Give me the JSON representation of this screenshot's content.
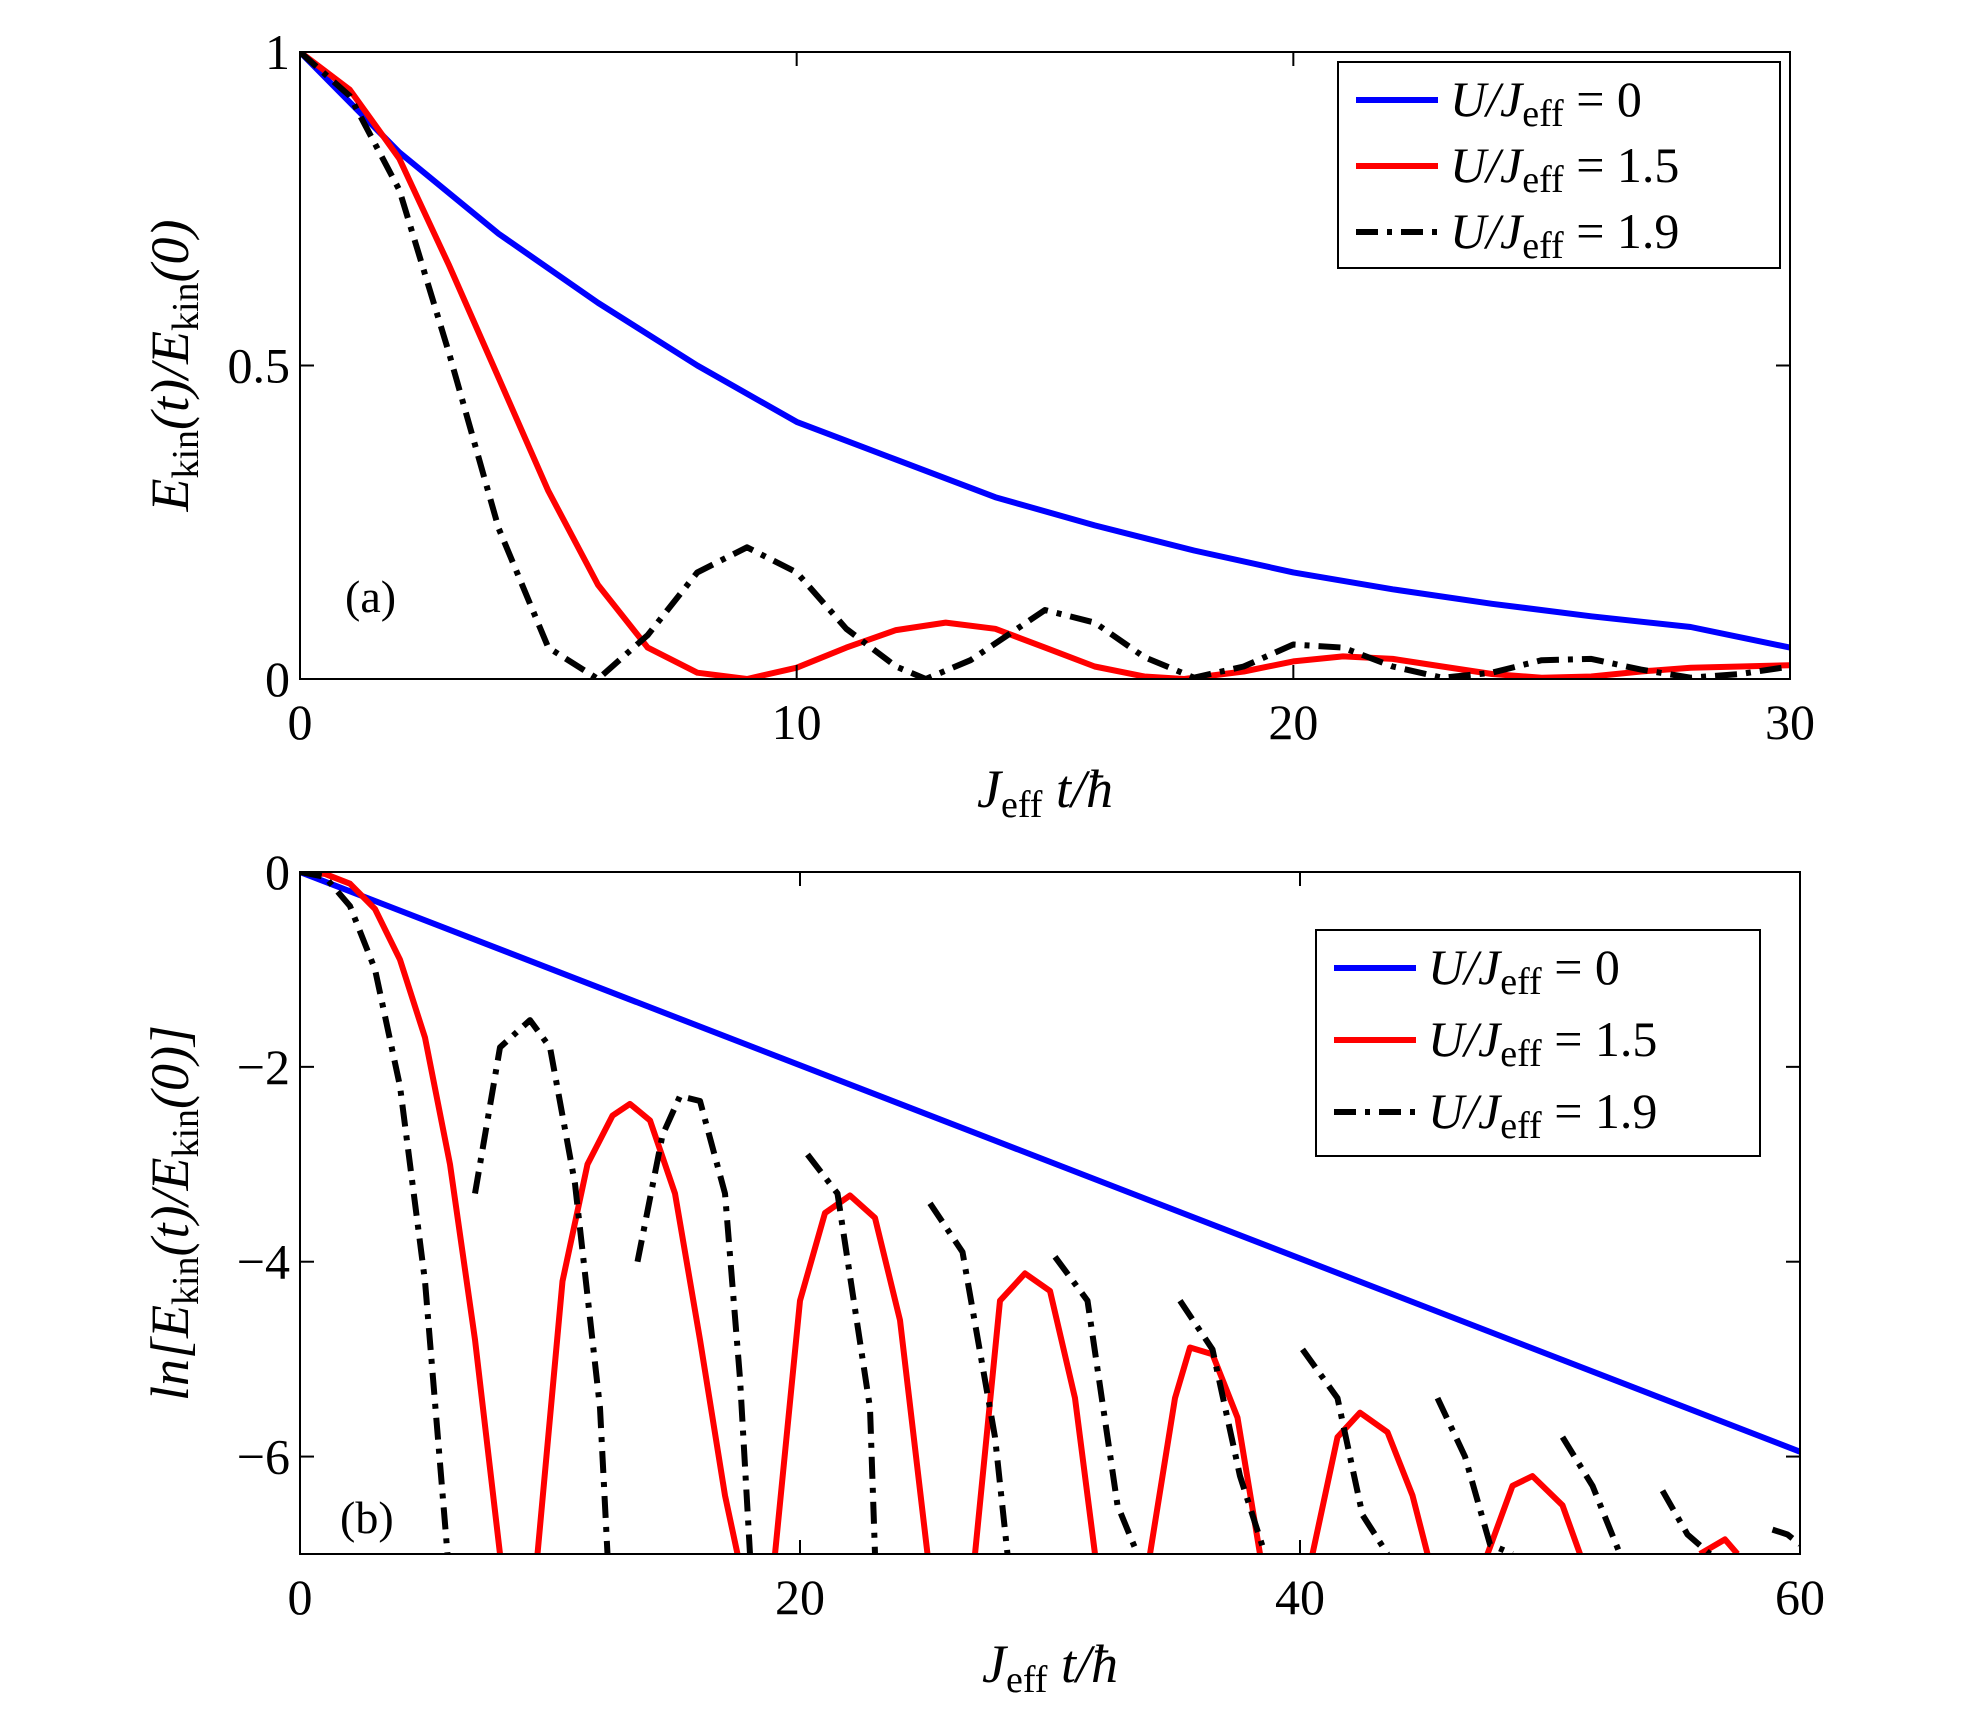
{
  "chart_data": [
    {
      "type": "line",
      "panel_label": "(a)",
      "xlabel": {
        "main": "J",
        "sub": "eff",
        "rest": " t/ħ"
      },
      "ylabel": {
        "pre": "E",
        "sub1": "kin",
        "mid": "(t)/E",
        "sub2": "kin",
        "post": "(0)"
      },
      "xlim": [
        0,
        30
      ],
      "ylim": [
        0,
        1
      ],
      "xticks": [
        0,
        10,
        20,
        30
      ],
      "xtick_labels": [
        "0",
        "10",
        "20",
        "30"
      ],
      "yticks": [
        0,
        0.5,
        1
      ],
      "ytick_labels": [
        "0",
        "0.5",
        "1"
      ],
      "legend_position": "top-right",
      "series": [
        {
          "name": "U/Jeff = 0",
          "legend": {
            "lhs": "U/J",
            "sub": "eff",
            "rhs": " = 0"
          },
          "color": "#0000ff",
          "style": "solid",
          "x": [
            0,
            2,
            4,
            6,
            8,
            10,
            12,
            14,
            16,
            18,
            20,
            22,
            24,
            26,
            28,
            30
          ],
          "y": [
            1.0,
            0.84,
            0.71,
            0.6,
            0.5,
            0.41,
            0.35,
            0.29,
            0.245,
            0.205,
            0.17,
            0.143,
            0.12,
            0.1,
            0.083,
            0.05
          ]
        },
        {
          "name": "U/Jeff = 1.5",
          "legend": {
            "lhs": "U/J",
            "sub": "eff",
            "rhs": " = 1.5"
          },
          "color": "#ff0000",
          "style": "solid",
          "x": [
            0,
            1,
            2,
            3,
            4,
            5,
            6,
            7,
            8,
            9,
            10,
            11,
            12,
            13,
            14,
            15,
            16,
            17,
            17.8,
            19,
            20,
            21,
            22,
            23,
            24,
            25,
            26,
            27,
            28,
            29,
            30
          ],
          "y": [
            1.0,
            0.94,
            0.83,
            0.66,
            0.48,
            0.3,
            0.15,
            0.05,
            0.01,
            0.0,
            0.018,
            0.05,
            0.078,
            0.09,
            0.08,
            0.05,
            0.02,
            0.004,
            0.0,
            0.012,
            0.028,
            0.036,
            0.032,
            0.02,
            0.008,
            0.002,
            0.004,
            0.012,
            0.018,
            0.02,
            0.022
          ]
        },
        {
          "name": "U/Jeff = 1.9",
          "legend": {
            "lhs": "U/J",
            "sub": "eff",
            "rhs": " = 1.9"
          },
          "color": "#000000",
          "style": "dashdot",
          "x": [
            0,
            1,
            2,
            3,
            4,
            5,
            6,
            7,
            8,
            9,
            10,
            11,
            12,
            12.6,
            13.5,
            15,
            16,
            17,
            18,
            19,
            20,
            21,
            22,
            23,
            24,
            25,
            26,
            27,
            28,
            29,
            30
          ],
          "y": [
            1.0,
            0.93,
            0.78,
            0.52,
            0.24,
            0.05,
            0.0,
            0.07,
            0.17,
            0.21,
            0.17,
            0.08,
            0.02,
            0.0,
            0.03,
            0.11,
            0.09,
            0.035,
            0.002,
            0.02,
            0.055,
            0.05,
            0.02,
            0.002,
            0.01,
            0.03,
            0.032,
            0.015,
            0.002,
            0.008,
            0.02
          ]
        }
      ]
    },
    {
      "type": "line",
      "panel_label": "(b)",
      "xlabel": {
        "main": "J",
        "sub": "eff",
        "rest": " t/ħ"
      },
      "ylabel": {
        "pre": "ln[E",
        "sub1": "kin",
        "mid": "(t)/E",
        "sub2": "kin",
        "post": "(0)]"
      },
      "xlim": [
        0,
        60
      ],
      "ylim": [
        -7,
        0
      ],
      "xticks": [
        0,
        20,
        40,
        60
      ],
      "xtick_labels": [
        "0",
        "20",
        "40",
        "60"
      ],
      "yticks": [
        0,
        -2,
        -4,
        -6
      ],
      "ytick_labels": [
        "0",
        "−2",
        "−4",
        "−6"
      ],
      "legend_position": "upper-right",
      "series": [
        {
          "name": "U/Jeff = 0",
          "legend": {
            "lhs": "U/J",
            "sub": "eff",
            "rhs": " = 0"
          },
          "color": "#0000ff",
          "style": "solid",
          "x": [
            0,
            60
          ],
          "y": [
            0,
            -5.95
          ]
        },
        {
          "name": "U/Jeff = 1.5",
          "legend": {
            "lhs": "U/J",
            "sub": "eff",
            "rhs": " = 1.5"
          },
          "color": "#ff0000",
          "style": "solid",
          "x": [
            0,
            1,
            2,
            3,
            4,
            5,
            6,
            7,
            8,
            8.5,
            9.5,
            10.5,
            11.5,
            12.5,
            13.2,
            14,
            15,
            16,
            17,
            17.5,
            18.1,
            19,
            20,
            21,
            22,
            23,
            24,
            25.1,
            26,
            27,
            28,
            29,
            30,
            31,
            31.8,
            33.2,
            34,
            35,
            35.6,
            36.5,
            37.5,
            38.4,
            39.8,
            40.5,
            41.5,
            42.4,
            43.5,
            44.5,
            45.1,
            46.5,
            47.5,
            48.5,
            49.3,
            50.5,
            51.2,
            55,
            56,
            57,
            57.5
          ],
          "y": [
            0,
            -0.02,
            -0.12,
            -0.38,
            -0.9,
            -1.7,
            -3.0,
            -4.8,
            -7.0,
            null,
            -7.0,
            -4.2,
            -3.0,
            -2.5,
            -2.38,
            -2.55,
            -3.3,
            -4.8,
            -6.4,
            -7.0,
            null,
            -7.0,
            -4.4,
            -3.5,
            -3.32,
            -3.55,
            -4.6,
            -7.0,
            null,
            -7.0,
            -4.4,
            -4.12,
            -4.3,
            -5.4,
            -7.0,
            null,
            -7.0,
            -5.4,
            -4.88,
            -4.95,
            -5.6,
            -7.0,
            null,
            -7.0,
            -5.8,
            -5.55,
            -5.75,
            -6.4,
            -7.0,
            null,
            -7.0,
            -6.3,
            -6.2,
            -6.5,
            -7.0,
            null,
            -7.0,
            -6.85,
            -7.0
          ]
        },
        {
          "name": "U/Jeff = 1.9",
          "legend": {
            "lhs": "U/J",
            "sub": "eff",
            "rhs": " = 1.9"
          },
          "color": "#000000",
          "style": "dashdot",
          "x": [
            0,
            1,
            2,
            3,
            4,
            5,
            5.9,
            6.2,
            7,
            8,
            9.2,
            10,
            11,
            12,
            12.3,
            12.6,
            13.5,
            14.5,
            15.2,
            16,
            17,
            17.6,
            18,
            19,
            20.3,
            21.5,
            22.8,
            23,
            24,
            25.2,
            26.5,
            27.8,
            28.3,
            29,
            30.2,
            31.5,
            32.7,
            33.5,
            34.5,
            35.2,
            36.5,
            37.6,
            38.6,
            39.5,
            40.1,
            41.5,
            42.5,
            43.5,
            44.6,
            45.5,
            46.6,
            47.6,
            48.5,
            49.6,
            50.5,
            51.7,
            52.8,
            53.5,
            54.5,
            55.5,
            56.4,
            58.2,
            58.9,
            59.5,
            60
          ],
          "y": [
            0,
            -0.05,
            -0.35,
            -1.0,
            -2.2,
            -4.2,
            -7.0,
            null,
            -3.3,
            -1.8,
            -1.52,
            -1.8,
            -3.2,
            -5.5,
            -7.0,
            null,
            -4.0,
            -2.7,
            -2.3,
            -2.35,
            -3.3,
            -5.2,
            -7.0,
            null,
            -2.9,
            -3.3,
            -5.5,
            -7.0,
            null,
            -3.4,
            -3.9,
            -5.8,
            -7.0,
            null,
            -3.95,
            -4.4,
            -6.5,
            -7.0,
            null,
            -4.4,
            -4.9,
            -6.2,
            -7.0,
            null,
            -4.9,
            -5.4,
            -6.6,
            -7.0,
            null,
            -5.4,
            -6.0,
            -6.9,
            -7.0,
            null,
            -5.8,
            -6.3,
            -7.0,
            null,
            -6.35,
            -6.8,
            -7.0,
            null,
            -6.75,
            -6.8,
            -6.9
          ]
        }
      ]
    }
  ]
}
